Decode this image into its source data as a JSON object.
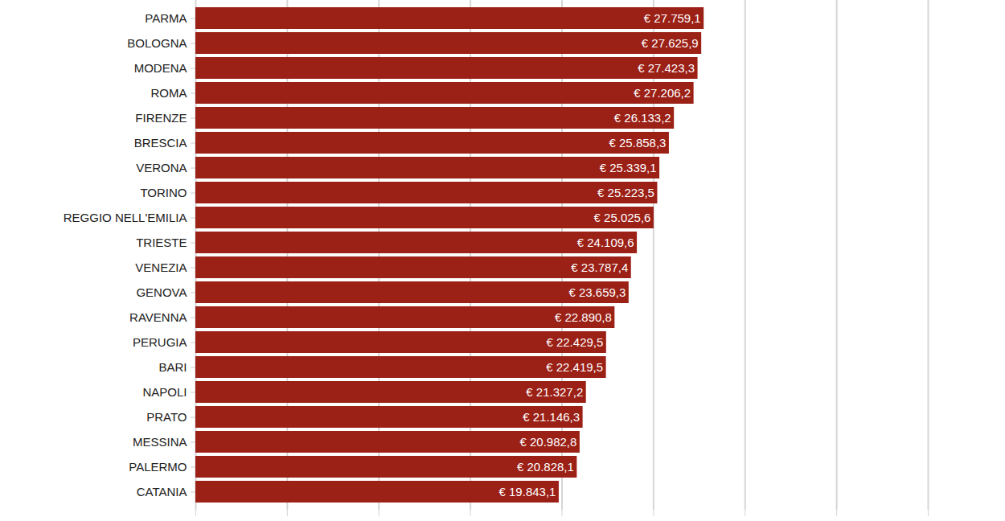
{
  "chart_data": {
    "type": "bar",
    "orientation": "horizontal",
    "categories": [
      "PARMA",
      "BOLOGNA",
      "MODENA",
      "ROMA",
      "FIRENZE",
      "BRESCIA",
      "VERONA",
      "TORINO",
      "REGGIO NELL'EMILIA",
      "TRIESTE",
      "VENEZIA",
      "GENOVA",
      "RAVENNA",
      "PERUGIA",
      "BARI",
      "NAPOLI",
      "PRATO",
      "MESSINA",
      "PALERMO",
      "CATANIA"
    ],
    "values": [
      27759.1,
      27625.9,
      27423.3,
      27206.2,
      26133.2,
      25858.3,
      25339.1,
      25223.5,
      25025.6,
      24109.6,
      23787.4,
      23659.3,
      22890.8,
      22429.5,
      22419.5,
      21327.2,
      21146.3,
      20982.8,
      20828.1,
      19843.1
    ],
    "value_labels": [
      "€ 27.759,1",
      "€ 27.625,9",
      "€ 27.423,3",
      "€ 27.206,2",
      "€ 26.133,2",
      "€ 25.858,3",
      "€ 25.339,1",
      "€ 25.223,5",
      "€ 25.025,6",
      "€ 24.109,6",
      "€ 23.787,4",
      "€ 23.659,3",
      "€ 22.890,8",
      "€ 22.429,5",
      "€ 22.419,5",
      "€ 21.327,2",
      "€ 21.146,3",
      "€ 20.982,8",
      "€ 20.828,1",
      "€ 19.843,1"
    ],
    "data_labels": true,
    "color": "#9b2016",
    "xlim": [
      0,
      40000
    ],
    "xticks": [
      0,
      5000,
      10000,
      15000,
      20000,
      25000,
      30000,
      35000,
      40000
    ],
    "grid": true,
    "tick_labels": "y"
  }
}
